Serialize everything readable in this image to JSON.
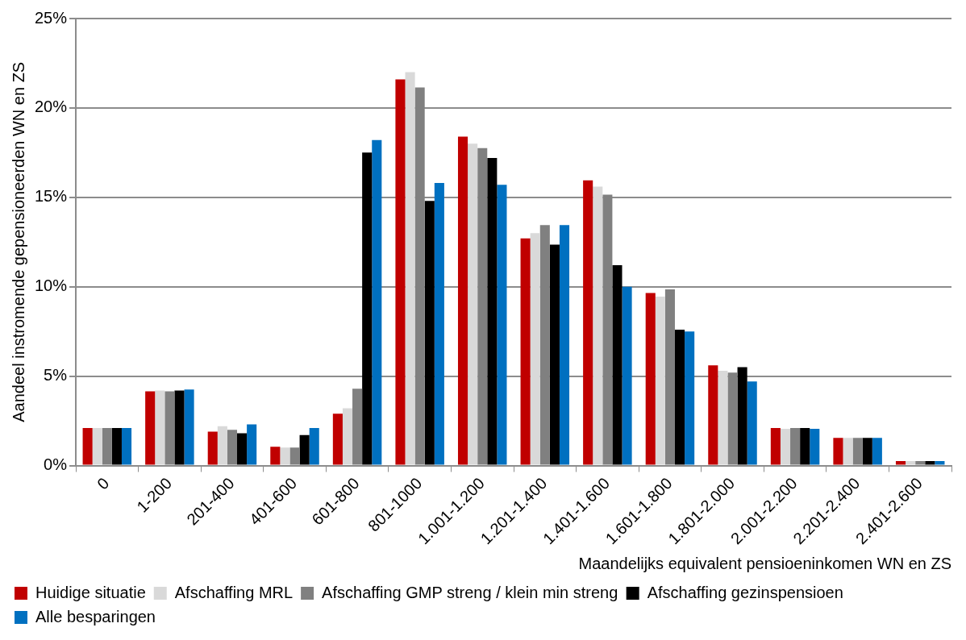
{
  "chart_data": {
    "type": "bar",
    "xlabel": "Maandelijks equivalent pensioeninkomen WN en ZS",
    "ylabel": "Aandeel instromende gepensioneerden WN en ZS",
    "categories": [
      "0",
      "1-200",
      "201-400",
      "401-600",
      "601-800",
      "801-1000",
      "1.001-1.200",
      "1.201-1.400",
      "1.401-1.600",
      "1.601-1.800",
      "1.801-2.000",
      "2.001-2.200",
      "2.201-2.400",
      "2.401-2.600"
    ],
    "series": [
      {
        "name": "Huidige situatie",
        "color": "#c00000",
        "values": [
          2.1,
          4.15,
          1.9,
          1.05,
          2.9,
          21.6,
          18.4,
          12.7,
          15.95,
          9.65,
          5.6,
          2.1,
          1.55,
          0.25
        ]
      },
      {
        "name": "Afschaffing MRL",
        "color": "#d9d9d9",
        "values": [
          2.1,
          4.2,
          2.2,
          1.0,
          3.2,
          22.0,
          18.0,
          13.0,
          15.6,
          9.45,
          5.3,
          2.05,
          1.55,
          0.25
        ]
      },
      {
        "name": "Afschaffing GMP streng / klein min streng",
        "color": "#808080",
        "values": [
          2.1,
          4.15,
          2.0,
          1.0,
          4.3,
          21.15,
          17.75,
          13.45,
          15.15,
          9.85,
          5.2,
          2.1,
          1.55,
          0.25
        ]
      },
      {
        "name": "Afschaffing gezinspensioen",
        "color": "#000000",
        "values": [
          2.1,
          4.2,
          1.8,
          1.7,
          17.5,
          14.8,
          17.2,
          12.35,
          11.2,
          7.6,
          5.5,
          2.1,
          1.55,
          0.25
        ]
      },
      {
        "name": "Alle besparingen",
        "color": "#0070c0",
        "values": [
          2.1,
          4.25,
          2.3,
          2.1,
          18.2,
          15.8,
          15.7,
          13.45,
          10.0,
          7.5,
          4.7,
          2.05,
          1.55,
          0.25
        ]
      }
    ],
    "ylim": [
      0,
      25
    ],
    "yticks": [
      {
        "value": 0,
        "label": "0%"
      },
      {
        "value": 5,
        "label": "5%"
      },
      {
        "value": 10,
        "label": "10%"
      },
      {
        "value": 15,
        "label": "15%"
      },
      {
        "value": 20,
        "label": "20%"
      },
      {
        "value": 25,
        "label": "25%"
      }
    ],
    "grid": "y",
    "legend": "bottom"
  }
}
